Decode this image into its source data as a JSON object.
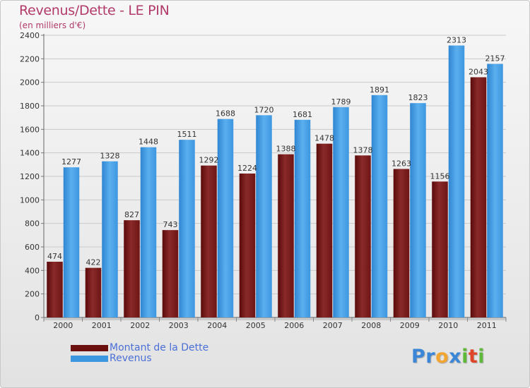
{
  "chart_data": {
    "type": "bar",
    "title": "Revenus/Dette - LE PIN",
    "subtitle": "(en milliers d'€)",
    "categories": [
      "2000",
      "2001",
      "2002",
      "2003",
      "2004",
      "2005",
      "2006",
      "2007",
      "2008",
      "2009",
      "2010",
      "2011"
    ],
    "series": [
      {
        "name": "Montant de la Dette",
        "color": "#7a1a1a",
        "values": [
          474,
          422,
          827,
          743,
          1292,
          1224,
          1388,
          1478,
          1378,
          1263,
          1156,
          2043
        ]
      },
      {
        "name": "Revenus",
        "color": "#3d96e0",
        "values": [
          1277,
          1328,
          1448,
          1511,
          1688,
          1720,
          1681,
          1789,
          1891,
          1823,
          2313,
          2157
        ]
      }
    ],
    "yticks": [
      0,
      200,
      400,
      600,
      800,
      1000,
      1200,
      1400,
      1600,
      1800,
      2000,
      2200,
      2400
    ],
    "ylim": [
      0,
      2400
    ],
    "grid": true,
    "xlabel": "",
    "ylabel": ""
  },
  "legend": {
    "items": [
      {
        "label": "Montant de la Dette",
        "color": "#6b0f0f"
      },
      {
        "label": "Revenus",
        "color": "#3d96e0"
      }
    ]
  },
  "logo": {
    "letters": [
      {
        "ch": "P",
        "color": "#3b86d6"
      },
      {
        "ch": "r",
        "color": "#3b86d6"
      },
      {
        "ch": "o",
        "color": "#f3a531"
      },
      {
        "ch": "x",
        "color": "#3b86d6"
      },
      {
        "ch": "i",
        "color": "#5fb83a"
      },
      {
        "ch": "t",
        "color": "#e0452b"
      },
      {
        "ch": "i",
        "color": "#5fb83a"
      }
    ]
  }
}
